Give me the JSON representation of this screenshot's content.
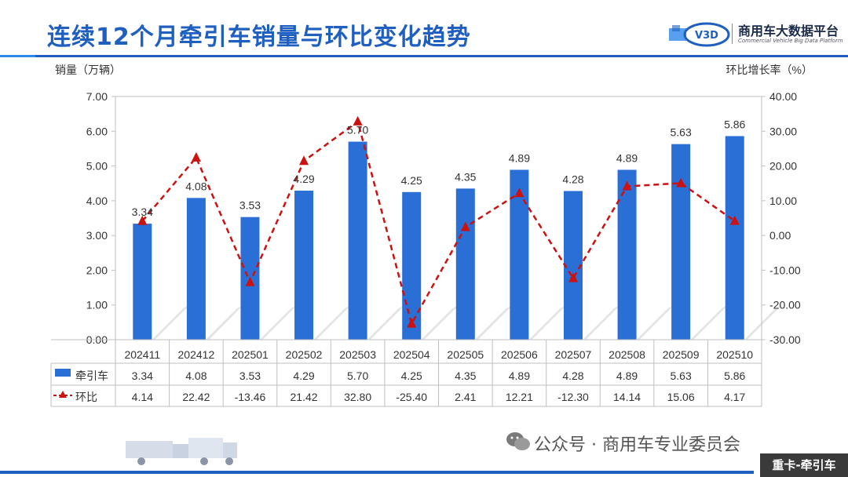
{
  "title": "连续12个月牵引车销量与环比变化趋势",
  "logo": {
    "mark": "V3D",
    "name": "商用车大数据平台",
    "subtitle": "Commercial Vehicle Big Data Platform"
  },
  "watermark": "公众号 · 商用车专业委员会",
  "badge": "重卡-牵引车",
  "colors": {
    "brand": "#1f5fc0",
    "bar": "#2a6fd6",
    "line": "#cc1111"
  },
  "chart_data": {
    "type": "bar",
    "ylabel": "销量（万辆）",
    "y2label": "环比增长率（%）",
    "ylim": [
      0,
      7
    ],
    "y2lim": [
      -30,
      40
    ],
    "yticks": [
      "7.00",
      "6.00",
      "5.00",
      "4.00",
      "3.00",
      "2.00",
      "1.00",
      "0.00"
    ],
    "y2ticks": [
      "40.00",
      "30.00",
      "20.00",
      "10.00",
      "0.00",
      "-10.00",
      "-20.00",
      "-30.00"
    ],
    "categories": [
      "202411",
      "202412",
      "202501",
      "202502",
      "202503",
      "202504",
      "202505",
      "202506",
      "202507",
      "202508",
      "202509",
      "202510"
    ],
    "series": [
      {
        "name": "牵引车",
        "type": "bar",
        "axis": "left",
        "values": [
          3.34,
          4.08,
          3.53,
          4.29,
          5.7,
          4.25,
          4.35,
          4.89,
          4.28,
          4.89,
          5.63,
          5.86
        ],
        "labels": [
          "3.34",
          "4.08",
          "3.53",
          "4.29",
          "5.70",
          "4.25",
          "4.35",
          "4.89",
          "4.28",
          "4.89",
          "5.63",
          "5.86"
        ]
      },
      {
        "name": "环比",
        "type": "line",
        "axis": "right",
        "style": "dashed",
        "marker": "triangle",
        "values": [
          4.14,
          22.42,
          -13.46,
          21.42,
          32.8,
          -25.4,
          2.41,
          12.21,
          -12.3,
          14.14,
          15.06,
          4.17
        ],
        "labels": [
          "4.14",
          "22.42",
          "-13.46",
          "21.42",
          "32.80",
          "-25.40",
          "2.41",
          "12.21",
          "-12.30",
          "14.14",
          "15.06",
          "4.17"
        ]
      }
    ],
    "grid": false,
    "legend": "table-below"
  }
}
